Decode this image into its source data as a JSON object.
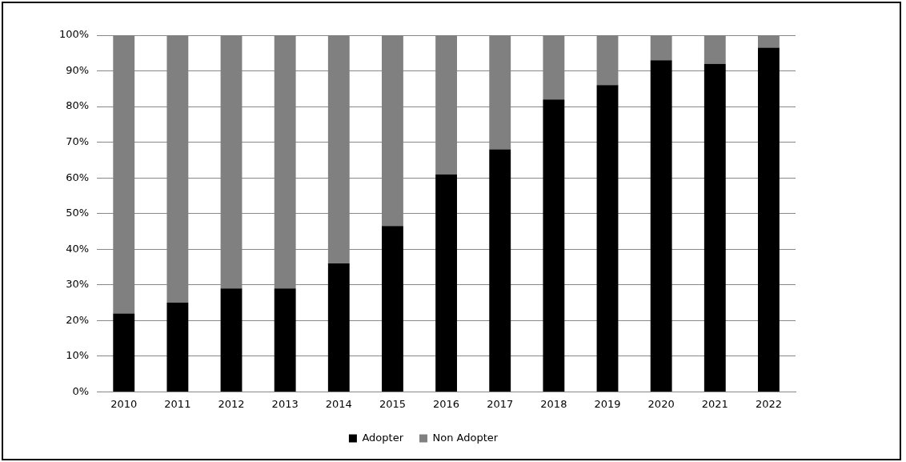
{
  "chart_data": {
    "type": "bar",
    "stacked": true,
    "categories": [
      "2010",
      "2011",
      "2012",
      "2013",
      "2014",
      "2015",
      "2016",
      "2017",
      "2018",
      "2019",
      "2020",
      "2021",
      "2022"
    ],
    "series": [
      {
        "name": "Adopter",
        "color": "#000000",
        "values": [
          22,
          25,
          29,
          29,
          36,
          46.5,
          61,
          68,
          82,
          86,
          93,
          92,
          96.5
        ]
      },
      {
        "name": "Non Adopter",
        "color": "#808080",
        "values": [
          78,
          75,
          71,
          71,
          64,
          53.5,
          39,
          32,
          18,
          14,
          7,
          8,
          3.5
        ]
      }
    ],
    "ylim": [
      0,
      100
    ],
    "yticks": [
      {
        "value": 0,
        "label": "0%"
      },
      {
        "value": 10,
        "label": "10%"
      },
      {
        "value": 20,
        "label": "20%"
      },
      {
        "value": 30,
        "label": "30%"
      },
      {
        "value": 40,
        "label": "40%"
      },
      {
        "value": 50,
        "label": "50%"
      },
      {
        "value": 60,
        "label": "60%"
      },
      {
        "value": 70,
        "label": "70%"
      },
      {
        "value": 80,
        "label": "80%"
      },
      {
        "value": 90,
        "label": "90%"
      },
      {
        "value": 100,
        "label": "100%"
      }
    ],
    "grid": "y",
    "legend": "bottom"
  }
}
